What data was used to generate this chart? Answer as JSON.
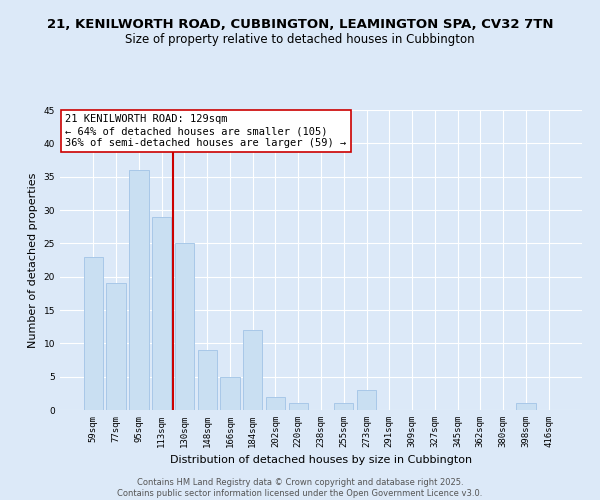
{
  "title1": "21, KENILWORTH ROAD, CUBBINGTON, LEAMINGTON SPA, CV32 7TN",
  "title2": "Size of property relative to detached houses in Cubbington",
  "xlabel": "Distribution of detached houses by size in Cubbington",
  "ylabel": "Number of detached properties",
  "bar_labels": [
    "59sqm",
    "77sqm",
    "95sqm",
    "113sqm",
    "130sqm",
    "148sqm",
    "166sqm",
    "184sqm",
    "202sqm",
    "220sqm",
    "238sqm",
    "255sqm",
    "273sqm",
    "291sqm",
    "309sqm",
    "327sqm",
    "345sqm",
    "362sqm",
    "380sqm",
    "398sqm",
    "416sqm"
  ],
  "bar_values": [
    23,
    19,
    36,
    29,
    25,
    9,
    5,
    12,
    2,
    1,
    0,
    1,
    3,
    0,
    0,
    0,
    0,
    0,
    0,
    1,
    0
  ],
  "bar_color": "#c9dff2",
  "bar_edge_color": "#a8c8e8",
  "vline_color": "#cc0000",
  "annotation_line1": "21 KENILWORTH ROAD: 129sqm",
  "annotation_line2": "← 64% of detached houses are smaller (105)",
  "annotation_line3": "36% of semi-detached houses are larger (59) →",
  "annotation_box_color": "#ffffff",
  "annotation_box_edge": "#cc0000",
  "ylim": [
    0,
    45
  ],
  "yticks": [
    0,
    5,
    10,
    15,
    20,
    25,
    30,
    35,
    40,
    45
  ],
  "bg_color": "#dce9f8",
  "plot_bg_color": "#dce9f8",
  "footer1": "Contains HM Land Registry data © Crown copyright and database right 2025.",
  "footer2": "Contains public sector information licensed under the Open Government Licence v3.0.",
  "title1_fontsize": 9.5,
  "title2_fontsize": 8.5,
  "annotation_fontsize": 7.5,
  "axis_label_fontsize": 8,
  "tick_fontsize": 6.5,
  "footer_fontsize": 6
}
